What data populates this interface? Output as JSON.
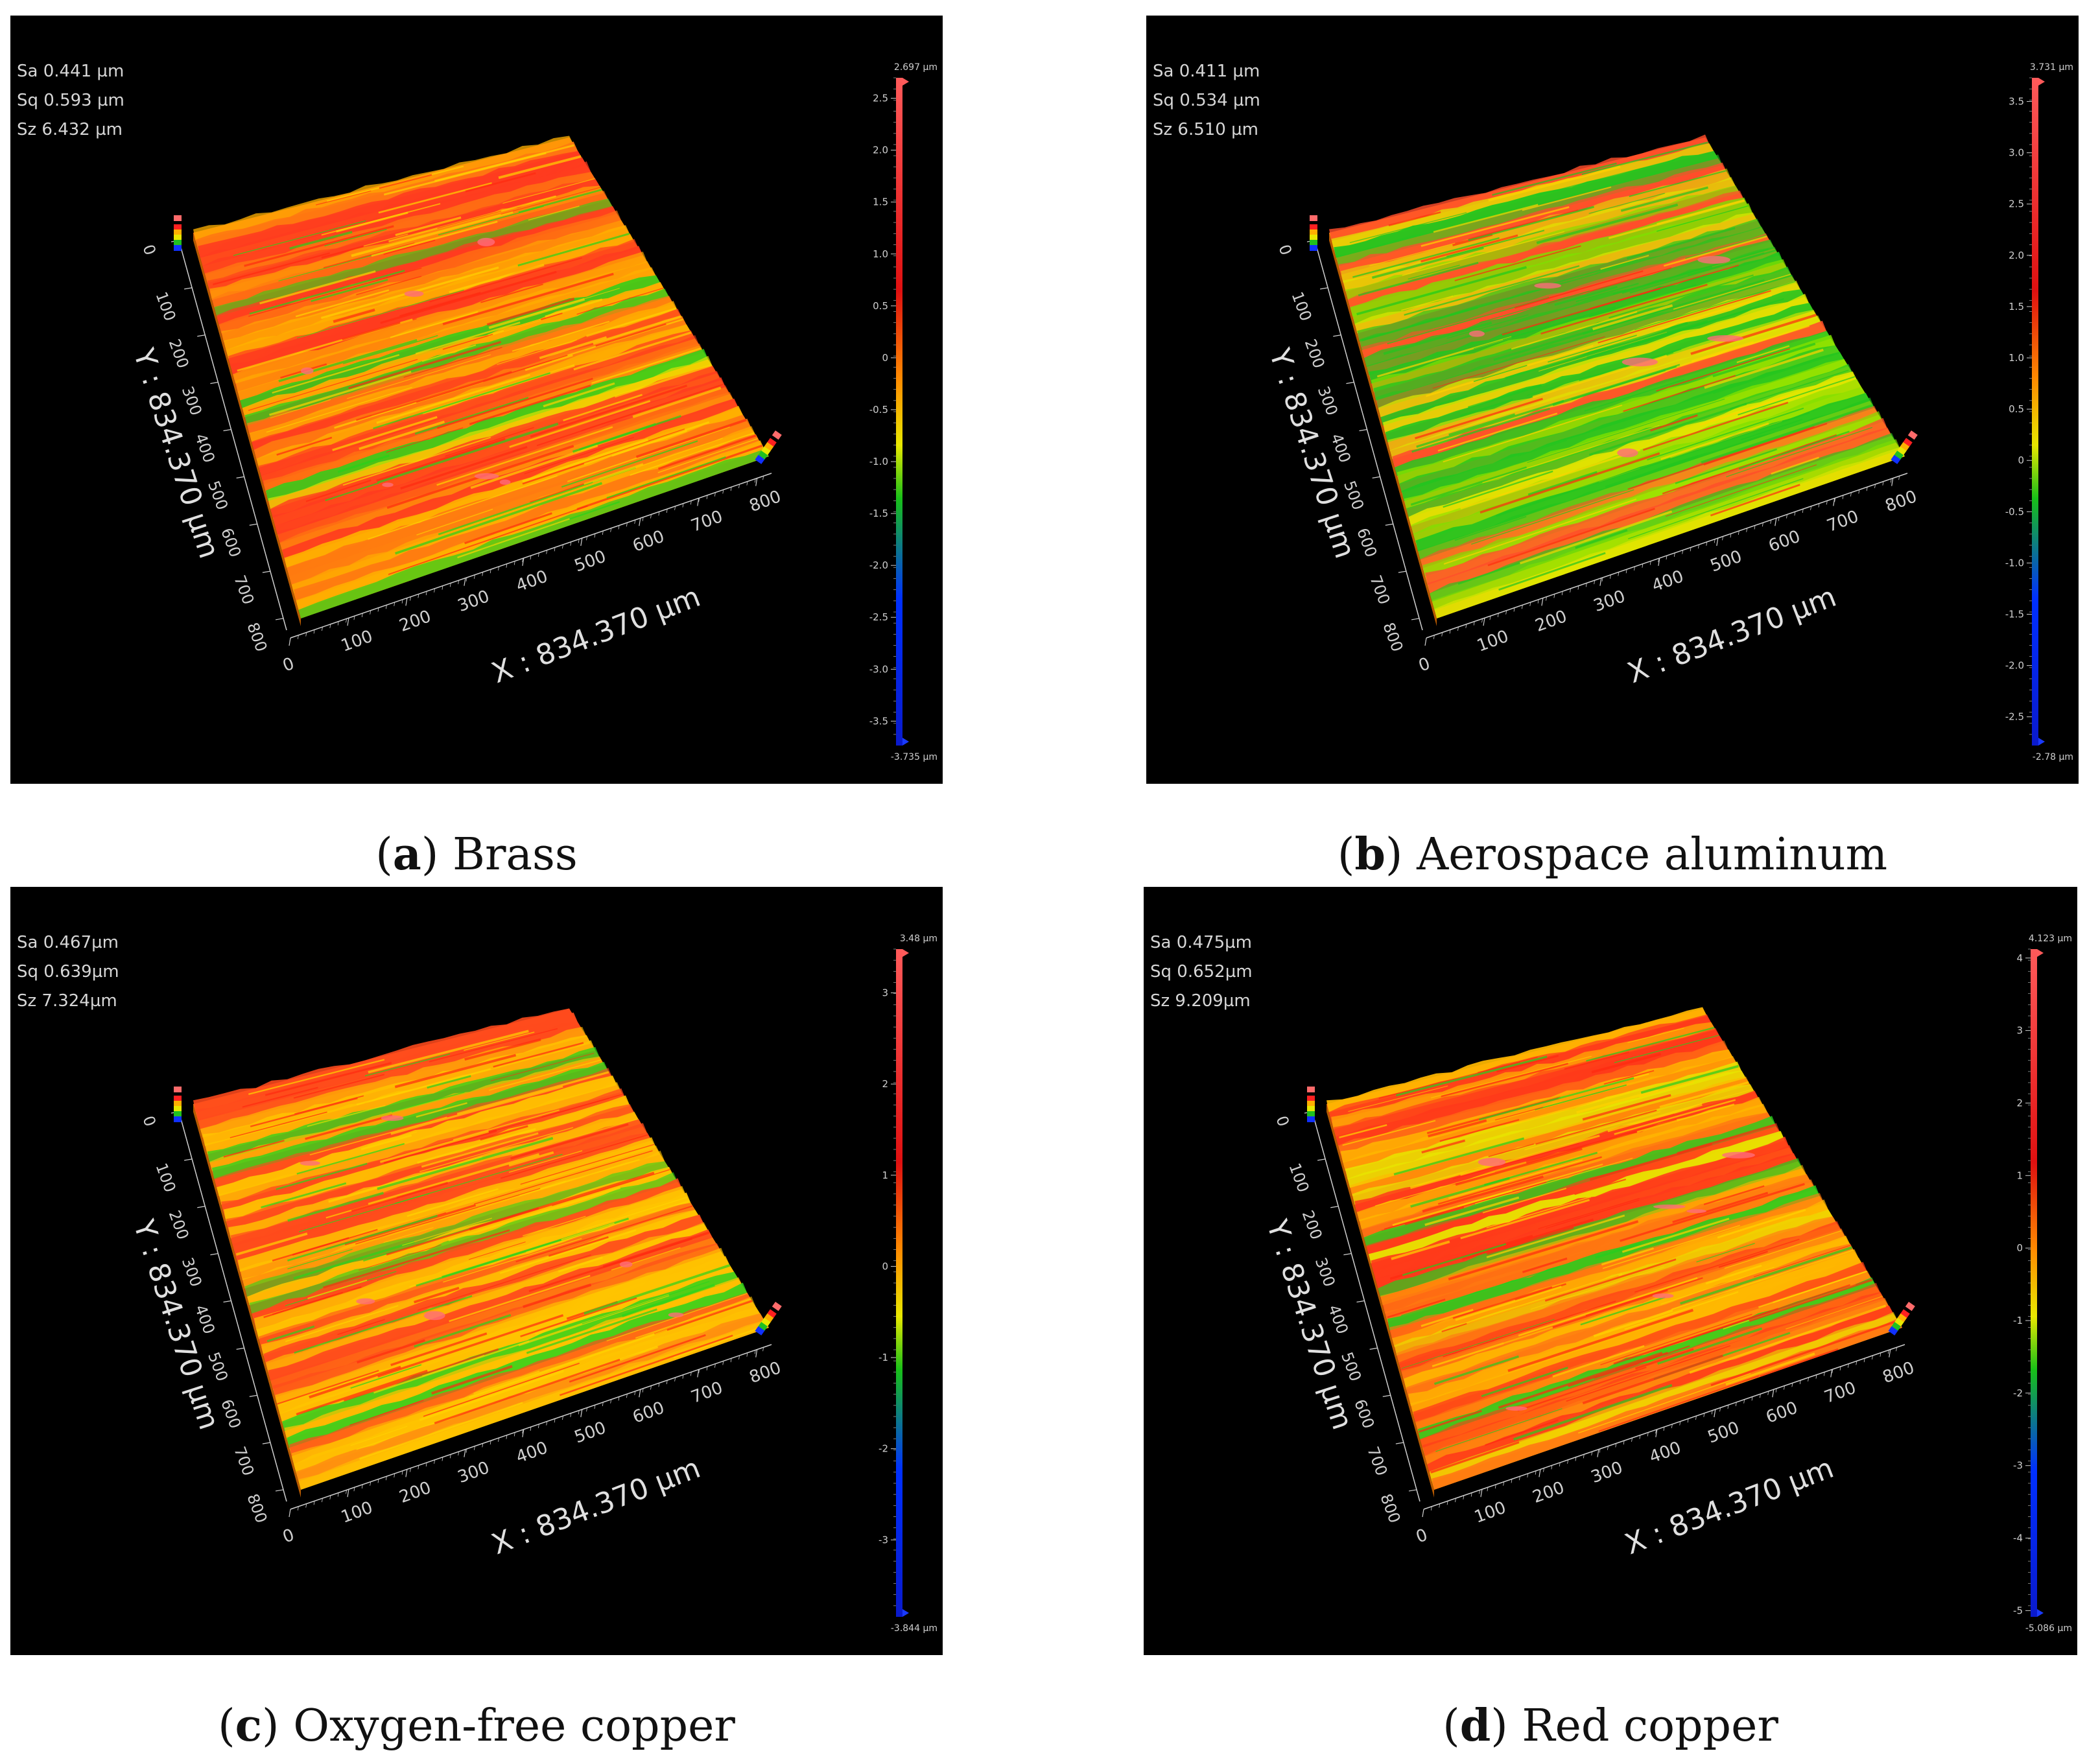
{
  "panels": [
    {
      "id": "a",
      "sa": "Sa 0.441 µm",
      "sq": "Sq 0.593 µm",
      "sz": "Sz 6.432 µm",
      "scale_max": "2.697 µm",
      "scale_min": "-3.735 µm",
      "scale_ticks": [
        "2.5",
        "2.0",
        "1.5",
        "1.0",
        "0.5",
        "0",
        "-0.5",
        "-1.0",
        "-1.5",
        "-2.0",
        "-2.5",
        "-3.0",
        "-3.5"
      ],
      "tick_range": [
        2.697,
        -3.735
      ],
      "y_label": "Y : 834.370 µm",
      "x_label": "X : 834.370 µm",
      "caption_letter": "a",
      "caption_text": "Brass",
      "surface_colors": [
        "#ff3b1f",
        "#ff7a10",
        "#ffb000",
        "#e9e300",
        "#28d21a"
      ],
      "surface_green_share": 0.15
    },
    {
      "id": "b",
      "sa": "Sa 0.411 µm",
      "sq": "Sq 0.534 µm",
      "sz": "Sz 6.510 µm",
      "scale_max": "3.731 µm",
      "scale_min": "-2.78 µm",
      "scale_ticks": [
        "3.5",
        "3.0",
        "2.5",
        "2.0",
        "1.5",
        "1.0",
        "0.5",
        "0",
        "-0.5",
        "-1.0",
        "-1.5",
        "-2.0",
        "-2.5"
      ],
      "tick_range": [
        3.731,
        -2.78
      ],
      "y_label": "Y : 834.370 µm",
      "x_label": "X : 834.370 µm",
      "caption_letter": "b",
      "caption_text": "Aerospace aluminum",
      "surface_colors": [
        "#ff4d2b",
        "#ffb000",
        "#dfe600",
        "#7ee000",
        "#22c61f"
      ],
      "surface_green_share": 0.55
    },
    {
      "id": "c",
      "sa": "Sa 0.467µm",
      "sq": "Sq 0.639µm",
      "sz": "Sz 7.324µm",
      "scale_max": "3.48 µm",
      "scale_min": "-3.844 µm",
      "scale_ticks": [
        "3",
        "2",
        "1",
        "0",
        "-1",
        "-2",
        "-3"
      ],
      "tick_range": [
        3.48,
        -3.844
      ],
      "y_label": "Y : 834.370 µm",
      "x_label": "X : 834.370 µm",
      "caption_letter": "c",
      "caption_text": "Oxygen-free copper",
      "surface_colors": [
        "#ff4a1c",
        "#ff8a10",
        "#ffc400",
        "#e6e800",
        "#2bd41c"
      ],
      "surface_green_share": 0.25
    },
    {
      "id": "d",
      "sa": "Sa 0.475µm",
      "sq": "Sq 0.652µm",
      "sz": "Sz 9.209µm",
      "scale_max": "4.123 µm",
      "scale_min": "-5.086 µm",
      "scale_ticks": [
        "4",
        "3",
        "2",
        "1",
        "0",
        "-1",
        "-2",
        "-3",
        "-4",
        "-5"
      ],
      "tick_range": [
        4.123,
        -5.086
      ],
      "y_label": "Y : 834.370 µm",
      "x_label": "X : 834.370 µm",
      "caption_letter": "d",
      "caption_text": "Red copper",
      "surface_colors": [
        "#ff3a1a",
        "#ff7812",
        "#ffb800",
        "#e8e400",
        "#24cf1e"
      ],
      "surface_green_share": 0.2
    }
  ],
  "axis_ticks": [
    "0",
    "100",
    "200",
    "300",
    "400",
    "500",
    "600",
    "700",
    "800"
  ],
  "colors": {
    "background": "#000000",
    "axis_text": "#d6d6d6",
    "caption": "#111111"
  }
}
